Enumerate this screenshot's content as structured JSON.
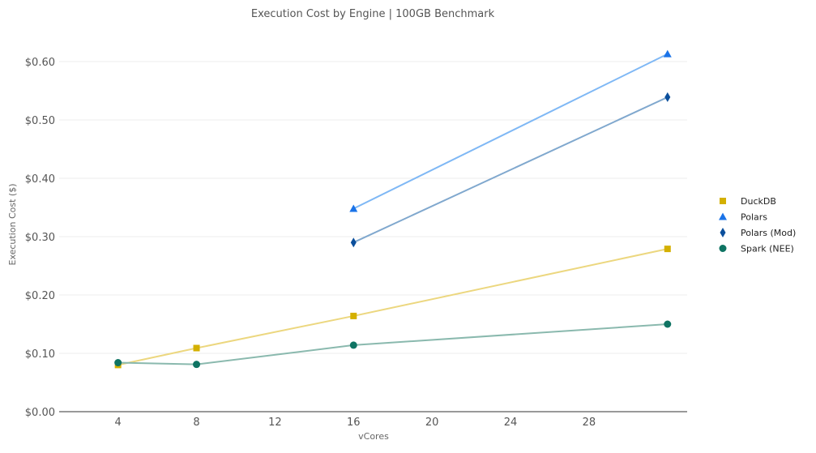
{
  "chart_data": {
    "type": "line",
    "title": "Execution Cost by Engine | 100GB Benchmark",
    "xlabel": "vCores",
    "ylabel": "Execution Cost ($)",
    "xlim": [
      1,
      33
    ],
    "ylim": [
      0,
      0.65
    ],
    "x_ticks": [
      4,
      8,
      12,
      16,
      20,
      24,
      28
    ],
    "y_ticks": [
      0,
      0.1,
      0.2,
      0.3,
      0.4,
      0.5,
      0.6
    ],
    "y_tick_labels": [
      "$0.00",
      "$0.10",
      "$0.20",
      "$0.30",
      "$0.40",
      "$0.50",
      "$0.60"
    ],
    "grid": true,
    "legend_position": "right",
    "series": [
      {
        "name": "DuckDB",
        "marker": "square",
        "marker_color": "#d4b000",
        "line_color": "#ecd77f",
        "x": [
          4,
          8,
          16,
          32
        ],
        "y": [
          0.08,
          0.109,
          0.164,
          0.279
        ]
      },
      {
        "name": "Polars",
        "marker": "triangle",
        "marker_color": "#1a73e8",
        "line_color": "#7fb8f5",
        "x": [
          16,
          32
        ],
        "y": [
          0.348,
          0.613
        ]
      },
      {
        "name": "Polars (Mod)",
        "marker": "diamond",
        "marker_color": "#0b4f9c",
        "line_color": "#80a8ce",
        "x": [
          16,
          32
        ],
        "y": [
          0.29,
          0.539
        ]
      },
      {
        "name": "Spark (NEE)",
        "marker": "circle",
        "marker_color": "#0f7463",
        "line_color": "#8ab9ae",
        "x": [
          4,
          8,
          16,
          32
        ],
        "y": [
          0.084,
          0.081,
          0.114,
          0.15
        ]
      }
    ]
  }
}
